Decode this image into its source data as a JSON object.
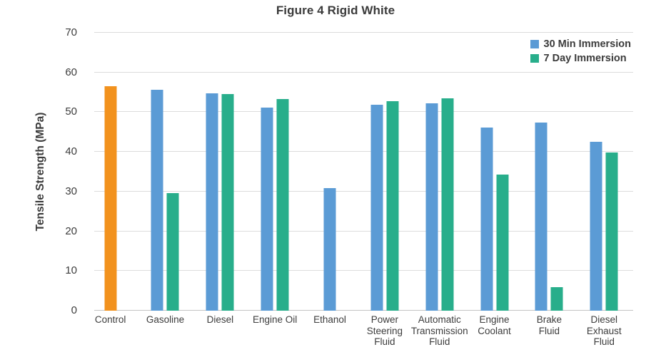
{
  "chart_data": {
    "type": "bar",
    "title": "Figure 4 Rigid White",
    "ylabel": "Tensile Strength (MPa)",
    "xlabel": "",
    "ylim": [
      0,
      70
    ],
    "y_ticks": [
      0,
      10,
      20,
      30,
      40,
      50,
      60,
      70
    ],
    "grid": "horizontal",
    "legend_position": "top-right",
    "categories": [
      "Control",
      "Gasoline",
      "Diesel",
      "Engine Oil",
      "Ethanol",
      "Power\nSteering\nFluid",
      "Automatic\nTransmission\nFluid",
      "Engine\nCoolant",
      "Brake\nFluid",
      "Diesel\nExhaust\nFluid"
    ],
    "series": [
      {
        "name": "Control",
        "color": "#F2921E",
        "in_legend": false,
        "values": [
          56.5,
          null,
          null,
          null,
          null,
          null,
          null,
          null,
          null,
          null
        ]
      },
      {
        "name": "30 Min Immersion",
        "color": "#5B9BD5",
        "in_legend": true,
        "values": [
          null,
          55.7,
          54.8,
          51.2,
          30.9,
          51.9,
          52.2,
          46.2,
          47.3,
          42.5
        ]
      },
      {
        "name": "7 Day Immersion",
        "color": "#28AE8B",
        "in_legend": true,
        "values": [
          null,
          29.6,
          54.5,
          53.3,
          null,
          52.7,
          53.5,
          34.2,
          5.9,
          39.8
        ]
      }
    ]
  },
  "colors": {
    "gridline": "#DCDCDC",
    "axis_line": "#C4C4C4",
    "text": "#3C3C3C"
  }
}
